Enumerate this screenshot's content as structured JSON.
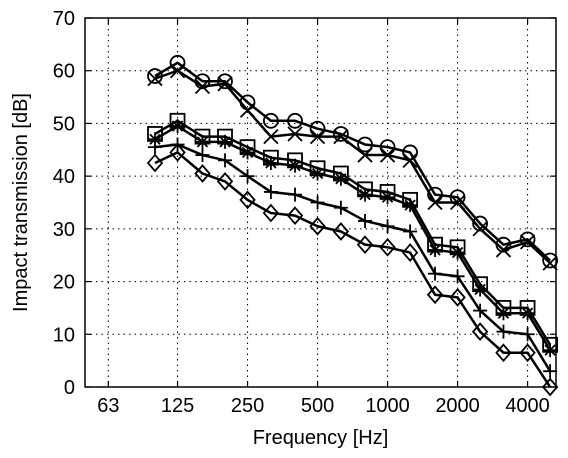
{
  "chart_data": {
    "type": "line",
    "xlabel": "Frequency [Hz]",
    "ylabel": "Impact transmission  [dB]",
    "xscale": "log",
    "xlim": [
      50,
      5300
    ],
    "ylim": [
      0,
      70
    ],
    "grid": true,
    "x_ticks": [
      63,
      125,
      250,
      500,
      1000,
      2000,
      4000
    ],
    "y_ticks": [
      0,
      10,
      20,
      30,
      40,
      50,
      60,
      70
    ],
    "x": [
      100,
      125,
      160,
      200,
      250,
      315,
      400,
      500,
      630,
      800,
      1000,
      1250,
      1600,
      2000,
      2500,
      3150,
      4000,
      5000
    ],
    "series": [
      {
        "marker": "circle",
        "values": [
          59,
          61.5,
          58,
          58,
          54,
          50.5,
          50.5,
          49,
          48,
          46,
          45.5,
          44.5,
          36.5,
          36,
          31,
          27,
          28,
          24
        ]
      },
      {
        "marker": "x",
        "values": [
          58.5,
          60,
          57,
          57.5,
          52.5,
          47.5,
          48,
          47.5,
          47.5,
          44,
          44,
          43,
          35,
          35,
          30,
          26,
          27.5,
          23.5
        ]
      },
      {
        "marker": "square",
        "values": [
          48,
          50.5,
          47.5,
          47.5,
          45.5,
          43.5,
          43,
          41.5,
          40.5,
          37.5,
          37,
          35.5,
          27,
          26.5,
          19.5,
          15,
          15,
          8
        ]
      },
      {
        "marker": "star",
        "values": [
          47,
          49.5,
          46.5,
          46.5,
          44.5,
          42.5,
          42,
          40.5,
          39.5,
          36.5,
          36,
          34.5,
          26,
          25.5,
          18.5,
          14,
          14,
          7
        ]
      },
      {
        "marker": "plus",
        "values": [
          45.5,
          46,
          44,
          43,
          40,
          37,
          36.5,
          35,
          34,
          31.5,
          30.5,
          29.5,
          21.5,
          21,
          14.5,
          10.5,
          10,
          3
        ]
      },
      {
        "marker": "diamond",
        "values": [
          42.5,
          44.5,
          40.5,
          39,
          35.5,
          33,
          32.5,
          30.5,
          29.5,
          27,
          26.5,
          25.5,
          17.5,
          17,
          10.5,
          6.5,
          6.5,
          0
        ]
      }
    ]
  }
}
